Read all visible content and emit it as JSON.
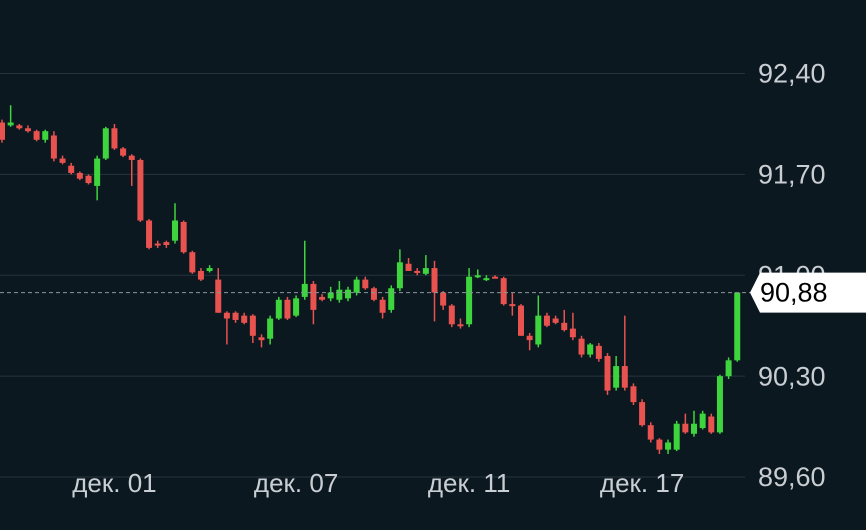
{
  "chart_data": {
    "type": "candlestick",
    "categories": [
      null,
      null,
      null,
      null,
      null,
      null,
      null,
      null,
      null,
      null,
      null,
      null,
      null,
      "дек. 01",
      null,
      null,
      null,
      null,
      null,
      null,
      null,
      null,
      null,
      null,
      null,
      null,
      null,
      null,
      null,
      null,
      null,
      null,
      null,
      null,
      "дек. 07",
      null,
      null,
      null,
      null,
      null,
      null,
      null,
      null,
      null,
      null,
      null,
      null,
      null,
      null,
      null,
      null,
      null,
      null,
      null,
      "дек. 11",
      null,
      null,
      null,
      null,
      null,
      null,
      null,
      null,
      null,
      null,
      null,
      null,
      null,
      null,
      null,
      null,
      null,
      null,
      null,
      "дек. 17",
      null,
      null,
      null,
      null,
      null,
      null,
      null,
      null,
      null,
      null,
      null
    ],
    "open": [
      92.06,
      92.04,
      92.04,
      92.02,
      92.0,
      91.94,
      91.97,
      91.81,
      91.76,
      91.71,
      91.69,
      91.62,
      91.81,
      92.02,
      91.88,
      91.83,
      91.8,
      91.38,
      91.22,
      91.23,
      91.24,
      91.37,
      91.16,
      91.03,
      91.03,
      90.97,
      90.74,
      90.74,
      90.72,
      90.72,
      90.57,
      90.56,
      90.7,
      90.83,
      90.72,
      90.85,
      90.94,
      90.85,
      90.84,
      90.83,
      90.84,
      90.88,
      90.97,
      90.91,
      90.83,
      90.76,
      90.91,
      91.08,
      91.03,
      91.01,
      91.05,
      90.88,
      90.79,
      90.66,
      90.66,
      90.99,
      90.98,
      90.99,
      90.98,
      90.8,
      90.79,
      90.58,
      90.52,
      90.72,
      90.7,
      90.67,
      90.63,
      90.56,
      90.45,
      90.51,
      90.44,
      90.22,
      90.37,
      90.23,
      90.12,
      89.96,
      89.86,
      89.79,
      89.79,
      89.97,
      89.9,
      89.94,
      90.02,
      89.91,
      90.3,
      90.41
    ],
    "high": [
      92.08,
      92.18,
      92.05,
      92.04,
      92.01,
      92.01,
      92.0,
      91.83,
      91.78,
      91.72,
      91.7,
      91.83,
      92.03,
      92.05,
      91.89,
      91.84,
      91.81,
      91.39,
      91.24,
      91.24,
      91.5,
      91.38,
      91.17,
      91.05,
      91.07,
      91.05,
      90.75,
      90.75,
      90.74,
      90.73,
      90.59,
      90.72,
      90.85,
      90.85,
      90.86,
      91.24,
      90.96,
      90.87,
      90.92,
      90.96,
      90.92,
      90.99,
      90.99,
      90.92,
      90.85,
      90.93,
      91.18,
      91.12,
      91.05,
      91.14,
      91.1,
      90.89,
      90.8,
      90.7,
      91.05,
      91.04,
      91.0,
      91.0,
      90.99,
      90.88,
      90.8,
      90.6,
      90.86,
      90.74,
      90.72,
      90.76,
      90.74,
      90.58,
      90.53,
      90.53,
      90.46,
      90.44,
      90.72,
      90.25,
      90.14,
      89.98,
      89.87,
      89.86,
      89.99,
      90.04,
      90.06,
      90.06,
      90.04,
      90.31,
      90.43,
      90.88
    ],
    "low": [
      91.92,
      92.03,
      92.01,
      91.99,
      91.93,
      91.92,
      91.79,
      91.77,
      91.7,
      91.66,
      91.63,
      91.52,
      91.8,
      91.87,
      91.82,
      91.62,
      91.37,
      91.18,
      91.19,
      91.19,
      91.22,
      91.15,
      91.01,
      90.96,
      91.02,
      90.74,
      90.52,
      90.67,
      90.66,
      90.53,
      90.5,
      90.52,
      90.69,
      90.69,
      90.71,
      90.83,
      90.66,
      90.82,
      90.82,
      90.81,
      90.82,
      90.86,
      90.9,
      90.82,
      90.7,
      90.74,
      90.89,
      91.03,
      91.0,
      91.0,
      90.68,
      90.76,
      90.64,
      90.63,
      90.64,
      90.98,
      90.96,
      90.98,
      90.79,
      90.72,
      90.58,
      90.48,
      90.5,
      90.64,
      90.66,
      90.61,
      90.55,
      90.43,
      90.43,
      90.4,
      90.17,
      90.2,
      90.2,
      90.1,
      89.95,
      89.84,
      89.76,
      89.76,
      89.78,
      89.9,
      89.88,
      89.93,
      89.9,
      89.9,
      90.28,
      90.4
    ],
    "close": [
      91.94,
      92.06,
      92.02,
      92.0,
      91.94,
      92.0,
      91.81,
      91.78,
      91.71,
      91.67,
      91.64,
      91.81,
      92.02,
      91.88,
      91.83,
      91.8,
      91.38,
      91.19,
      91.21,
      91.21,
      91.38,
      91.16,
      91.02,
      90.97,
      91.05,
      90.74,
      90.7,
      90.69,
      90.67,
      90.58,
      90.55,
      90.7,
      90.83,
      90.7,
      90.84,
      90.94,
      90.76,
      90.83,
      90.88,
      90.9,
      90.9,
      90.97,
      90.91,
      90.83,
      90.74,
      90.91,
      91.09,
      91.03,
      91.02,
      91.05,
      90.88,
      90.79,
      90.66,
      90.65,
      90.99,
      91.0,
      90.98,
      90.98,
      90.8,
      90.79,
      90.58,
      90.55,
      90.72,
      90.65,
      90.67,
      90.62,
      90.57,
      90.45,
      90.52,
      90.42,
      90.2,
      90.37,
      90.22,
      90.12,
      89.96,
      89.86,
      89.79,
      89.84,
      89.97,
      89.91,
      89.97,
      90.04,
      89.91,
      90.3,
      90.41,
      90.88
    ],
    "up_color": "#3ed43e",
    "down_color": "#e8524f",
    "ylim": [
      89.42,
      92.91
    ],
    "yticks": [
      {
        "value": 89.6,
        "label": "89,60"
      },
      {
        "value": 90.3,
        "label": "90,30"
      },
      {
        "value": 91.0,
        "label": "91,00"
      },
      {
        "value": 91.7,
        "label": "91,70"
      },
      {
        "value": 92.4,
        "label": "92,40"
      }
    ],
    "grid": true,
    "last_price": {
      "value": 90.88,
      "label": "90,88"
    }
  }
}
